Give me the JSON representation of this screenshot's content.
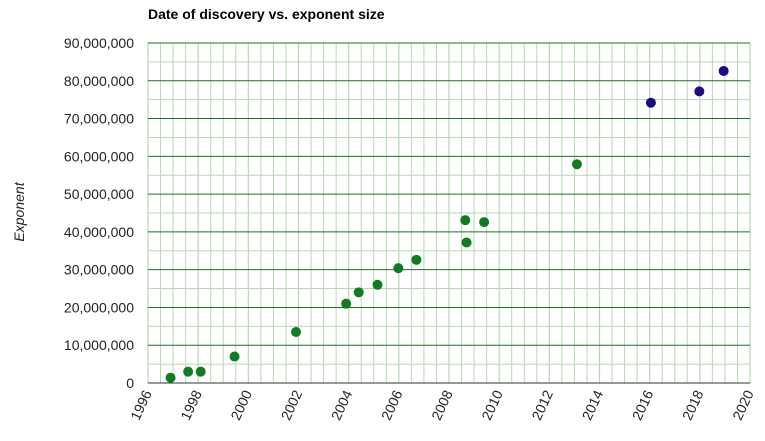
{
  "chart_data": {
    "type": "scatter",
    "title": "Date of discovery vs. exponent size",
    "xlabel": "",
    "ylabel": "Exponent",
    "xlim": [
      1996,
      2020
    ],
    "ylim": [
      0,
      90000000
    ],
    "x_ticks": [
      1996,
      1998,
      2000,
      2002,
      2004,
      2006,
      2008,
      2010,
      2012,
      2014,
      2016,
      2018,
      2020
    ],
    "x_tick_labels": [
      "1996",
      "1998",
      "2000",
      "2002",
      "2004",
      "2006",
      "2008",
      "2010",
      "2012",
      "2014",
      "2016",
      "2018",
      "2020"
    ],
    "y_ticks": [
      0,
      10000000,
      20000000,
      30000000,
      40000000,
      50000000,
      60000000,
      70000000,
      80000000,
      90000000
    ],
    "y_tick_labels": [
      "0",
      "10,000,000",
      "20,000,000",
      "30,000,000",
      "40,000,000",
      "50,000,000",
      "60,000,000",
      "70,000,000",
      "80,000,000",
      "90,000,000"
    ],
    "grid": true,
    "legend": "none",
    "colors": {
      "series_1": "#0f7d1f",
      "series_2": "#1a0b80",
      "major_grid": "#1b6e2a",
      "minor_grid": "#b9d7b5"
    },
    "series": [
      {
        "points": [
          [
            1996.9,
            1400000
          ],
          [
            1997.6,
            3000000
          ],
          [
            1998.1,
            3000000
          ],
          [
            1999.45,
            7000000
          ],
          [
            2001.9,
            13500000
          ],
          [
            2003.9,
            21000000
          ],
          [
            2004.4,
            24000000
          ],
          [
            2005.15,
            26000000
          ],
          [
            2005.98,
            30400000
          ],
          [
            2006.7,
            32600000
          ],
          [
            2008.65,
            43100000
          ],
          [
            2008.7,
            37200000
          ],
          [
            2009.4,
            42600000
          ],
          [
            2013.1,
            57900000
          ]
        ]
      },
      {
        "points": [
          [
            2016.05,
            74200000
          ],
          [
            2017.98,
            77200000
          ],
          [
            2018.95,
            82600000
          ]
        ]
      }
    ]
  }
}
